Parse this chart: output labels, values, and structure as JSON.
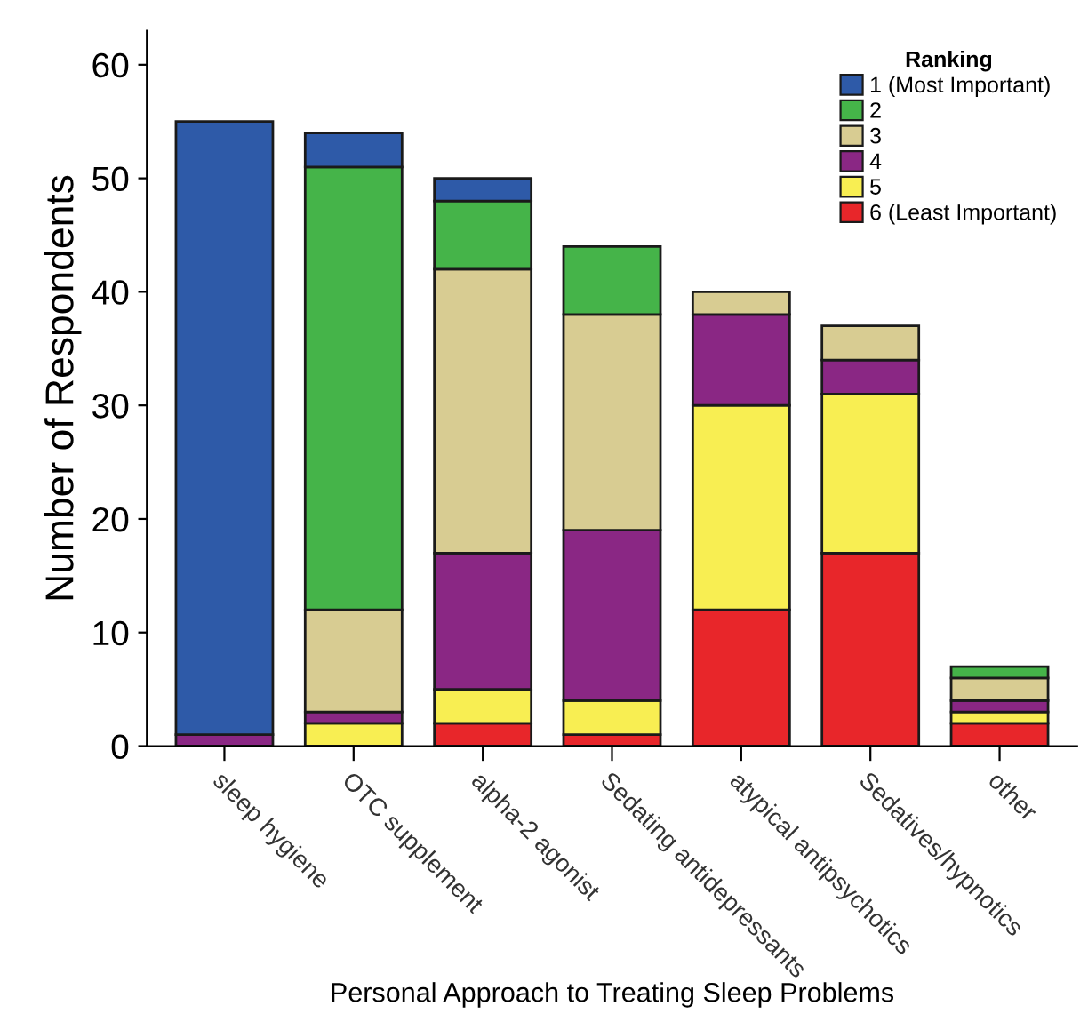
{
  "chart_data": {
    "type": "bar",
    "stacked": true,
    "xlabel": "Personal Approach to Treating Sleep Problems",
    "ylabel": "Number of Respondents",
    "legend_title": "Ranking",
    "legend": "top right",
    "categories": [
      "sleep hygiene",
      "OTC supplement",
      "alpha-2 agonist",
      "Sedating antidepressants",
      "atypical antipsychotics",
      "Sedatives/hypnotics",
      "other"
    ],
    "series": [
      {
        "name": "6 (Least Important)",
        "color": "#e8262a",
        "values": [
          null,
          null,
          2,
          1,
          12,
          17,
          2
        ]
      },
      {
        "name": "5",
        "color": "#f8ee52",
        "values": [
          null,
          2,
          3,
          3,
          18,
          14,
          1
        ]
      },
      {
        "name": "4",
        "color": "#8a2784",
        "values": [
          1,
          1,
          12,
          15,
          8,
          3,
          1
        ]
      },
      {
        "name": "3",
        "color": "#d8cc92",
        "values": [
          null,
          9,
          25,
          19,
          2,
          3,
          2
        ]
      },
      {
        "name": "2",
        "color": "#45b449",
        "values": [
          null,
          39,
          6,
          6,
          null,
          null,
          1
        ]
      },
      {
        "name": "1 (Most Important)",
        "color": "#2e5aa8",
        "values": [
          54,
          3,
          2,
          null,
          null,
          null,
          null
        ]
      }
    ],
    "ylim": [
      0,
      63
    ],
    "yticks": [
      0,
      10,
      20,
      30,
      40,
      50,
      60
    ],
    "grid": false
  }
}
